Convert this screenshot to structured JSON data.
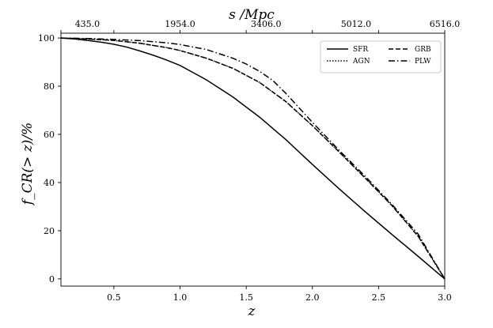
{
  "chart_data": {
    "type": "line",
    "xlabel": "z",
    "ylabel": "f_CR(> z)/%",
    "top_xlabel": "s /Mpc",
    "xlim": [
      0.1,
      3.0
    ],
    "ylim": [
      -3,
      102
    ],
    "x_ticks": [
      0.5,
      1.0,
      1.5,
      2.0,
      2.5,
      3.0
    ],
    "x_tick_labels": [
      "0.5",
      "1.0",
      "1.5",
      "2.0",
      "2.5",
      "3.0"
    ],
    "y_ticks": [
      0,
      20,
      40,
      60,
      80,
      100
    ],
    "y_tick_labels": [
      "0",
      "20",
      "40",
      "60",
      "80",
      "100"
    ],
    "top_ticks_z": [
      0.1,
      0.5,
      1.0,
      1.5,
      2.0,
      2.5,
      3.0
    ],
    "top_tick_labels": [
      "435.0",
      "1954.0",
      "3406.0",
      "5012.0",
      "6516.0"
    ],
    "top_tick_label_positions_z": [
      0.3,
      1.0,
      1.65,
      2.33,
      3.0
    ],
    "legend": {
      "position": "top-right",
      "columns": 2
    },
    "series": [
      {
        "name": "SFR",
        "style": "solid",
        "x": [
          0.1,
          0.2,
          0.3,
          0.4,
          0.5,
          0.6,
          0.7,
          0.8,
          0.9,
          1.0,
          1.2,
          1.4,
          1.6,
          1.8,
          2.0,
          2.2,
          2.4,
          2.6,
          2.8,
          3.0
        ],
        "y": [
          100,
          99.6,
          99.0,
          98.3,
          97.4,
          96.2,
          94.6,
          92.8,
          90.8,
          88.6,
          82.6,
          75.5,
          67.2,
          57.8,
          47.5,
          37.5,
          27.8,
          18.5,
          9.3,
          0
        ]
      },
      {
        "name": "GRB",
        "style": "dashed",
        "x": [
          0.1,
          0.3,
          0.5,
          0.7,
          0.9,
          1.0,
          1.2,
          1.4,
          1.6,
          1.8,
          2.0,
          2.2,
          2.4,
          2.6,
          2.8,
          3.0
        ],
        "y": [
          100,
          99.6,
          99.0,
          97.8,
          96.0,
          94.8,
          91.6,
          87.4,
          81.6,
          73.6,
          63.6,
          52.8,
          41.8,
          30.5,
          17.6,
          0
        ]
      },
      {
        "name": "AGN",
        "style": "dotted",
        "x": [
          0.1,
          0.3,
          0.5,
          0.7,
          0.9,
          1.0,
          1.2,
          1.4,
          1.6,
          1.8,
          2.0,
          2.2,
          2.4,
          2.6,
          2.8,
          3.0
        ],
        "y": [
          100,
          99.6,
          99.0,
          97.8,
          96.0,
          94.8,
          91.6,
          87.4,
          81.6,
          73.6,
          63.6,
          52.8,
          41.8,
          30.5,
          17.6,
          0
        ]
      },
      {
        "name": "PLW",
        "style": "dashdot",
        "x": [
          0.1,
          0.3,
          0.5,
          0.7,
          0.9,
          1.0,
          1.2,
          1.4,
          1.5,
          1.6,
          1.7,
          1.8,
          2.0,
          2.2,
          2.4,
          2.6,
          2.8,
          3.0
        ],
        "y": [
          100,
          99.8,
          99.4,
          98.9,
          98.0,
          97.3,
          95.2,
          91.6,
          89.2,
          86.2,
          82.4,
          77.0,
          65.0,
          53.5,
          42.5,
          31.0,
          18.5,
          0
        ]
      }
    ]
  }
}
